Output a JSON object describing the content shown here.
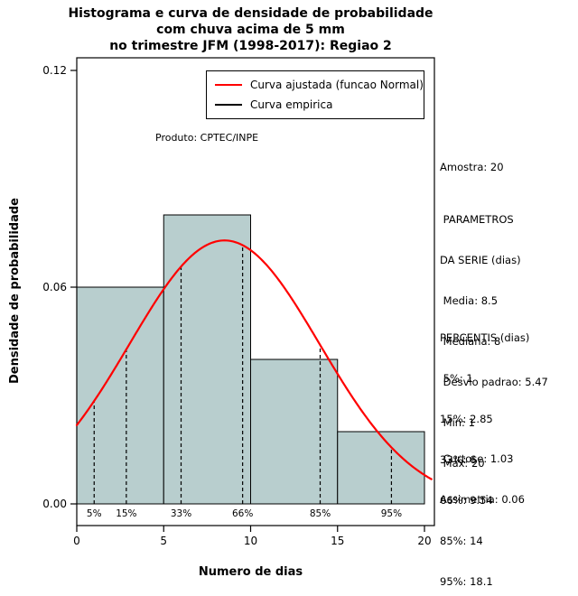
{
  "title": {
    "lines": [
      "Histograma e curva de densidade de probabilidade",
      "com chuva acima de 5 mm",
      "no trimestre JFM (1998-2017): Regiao 2"
    ]
  },
  "chart_data": {
    "type": "bar",
    "title": "Histograma e curva de densidade de probabilidade com chuva acima de 5 mm no trimestre JFM (1998-2017): Regiao 2",
    "xlabel": "Numero de dias",
    "ylabel": "Densidade de probabilidade",
    "xlim": [
      0,
      20
    ],
    "ylim": [
      0,
      0.12
    ],
    "grid": false,
    "x_tick_values": [
      0,
      5,
      10,
      15,
      20
    ],
    "x_ticks": [
      "0",
      "5",
      "10",
      "15",
      "20"
    ],
    "y_tick_values": [
      0,
      0.06,
      0.12
    ],
    "y_ticks": [
      "0.00",
      "0.06",
      "0.12"
    ],
    "histogram": {
      "bin_edges": [
        0,
        5,
        10,
        15,
        20
      ],
      "densities": [
        0.06,
        0.08,
        0.04,
        0.02
      ],
      "fill": "#b8cece",
      "stroke": "#000000"
    },
    "normal_curve": {
      "mean": 8.5,
      "sd": 5.47,
      "color": "#ff0000"
    },
    "percentiles": [
      {
        "label": "5%",
        "x": 1
      },
      {
        "label": "15%",
        "x": 2.85
      },
      {
        "label": "33%",
        "x": 6
      },
      {
        "label": "66%",
        "x": 9.54
      },
      {
        "label": "85%",
        "x": 14
      },
      {
        "label": "95%",
        "x": 18.1
      }
    ],
    "annotation": "Produto: CPTEC/INPE",
    "legend": {
      "position": "top",
      "entries": [
        {
          "label": "Curva ajustada (funcao Normal)",
          "color": "#ff0000"
        },
        {
          "label": "Curva empirica",
          "color": "#000000"
        }
      ]
    }
  },
  "stats_panel": {
    "amostra": "Amostra: 20",
    "serie_block": [
      " PARAMETROS",
      "DA SERIE (dias)",
      " Media: 8.5",
      " Mediana: 8",
      " Desvio padrao: 5.47",
      " Min: 1",
      " Max: 20"
    ],
    "percentis_block": [
      "PERCENTIS (dias)",
      " 5%: 1",
      "15%: 2.85",
      "33%: 6",
      "66%: 9.54",
      "85%: 14",
      "95%: 18.1"
    ],
    "extra_block": [
      " Curtose: 1.03",
      "Assimetria: 0.06"
    ]
  }
}
